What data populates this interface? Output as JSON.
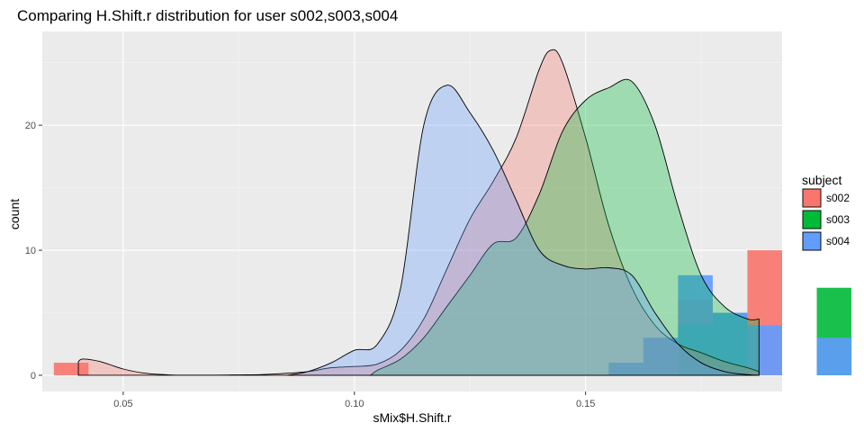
{
  "chart_data": {
    "type": "histogram+density",
    "title": "Comparing H.Shift.r distribution for user s002,s003,s004",
    "xlabel": "sMix$H.Shift.r",
    "ylabel": "count",
    "xlim": [
      0.0325,
      0.1925
    ],
    "ylim": [
      -1.3,
      27.5
    ],
    "x_ticks": [
      0.05,
      0.1,
      0.15
    ],
    "x_tick_labels": [
      "0.05",
      "0.10",
      "0.15"
    ],
    "y_ticks": [
      0,
      10,
      20
    ],
    "y_tick_labels": [
      "0",
      "10",
      "20"
    ],
    "grid": true,
    "legend": {
      "title": "subject",
      "position": "right",
      "items": [
        {
          "label": "s002",
          "color": "#F8766D"
        },
        {
          "label": "s003",
          "color": "#00BA38"
        },
        {
          "label": "s004",
          "color": "#619CFF"
        }
      ]
    },
    "histogram_bins": {
      "width": 0.0075,
      "start": 0.035
    },
    "series": [
      {
        "name": "s002",
        "color": "#F8766D",
        "histogram_counts": [
          1,
          0,
          0,
          0,
          0,
          0,
          0,
          0,
          0,
          0,
          0,
          0,
          0,
          0,
          0,
          0,
          0,
          0,
          6,
          0,
          10,
          0,
          3,
          0,
          0,
          0,
          0,
          0
        ],
        "density": {
          "x": [
            0.0403,
            0.0413,
            0.045,
            0.05,
            0.055,
            0.06,
            0.065,
            0.07,
            0.075,
            0.08,
            0.085,
            0.09,
            0.095,
            0.1,
            0.105,
            0.11,
            0.115,
            0.12,
            0.125,
            0.13,
            0.135,
            0.14,
            0.1425,
            0.145,
            0.15,
            0.155,
            0.16,
            0.165,
            0.17,
            0.175,
            0.18,
            0.185,
            0.1875
          ],
          "y": [
            1.1,
            1.3,
            1.1,
            0.5,
            0.15,
            0.03,
            0.01,
            0.01,
            0.03,
            0.05,
            0.15,
            0.3,
            0.6,
            0.7,
            0.9,
            2.0,
            4.5,
            8.5,
            12.5,
            15.5,
            19.0,
            24.5,
            26.0,
            25.0,
            19.0,
            12.0,
            7.0,
            4.0,
            2.5,
            1.8,
            1.1,
            0.6,
            0.3
          ]
        }
      },
      {
        "name": "s003",
        "color": "#00BA38",
        "histogram_counts": [
          0,
          0,
          0,
          0,
          0,
          0,
          0,
          0,
          0,
          0,
          0,
          0,
          0,
          0,
          0,
          0,
          0,
          0,
          4,
          5,
          0,
          0,
          7,
          0,
          8,
          4,
          1,
          2
        ],
        "density": {
          "x": [
            0.1035,
            0.105,
            0.11,
            0.115,
            0.12,
            0.125,
            0.13,
            0.135,
            0.14,
            0.145,
            0.15,
            0.155,
            0.16,
            0.165,
            0.17,
            0.175,
            0.18,
            0.185,
            0.1875
          ],
          "y": [
            0.0,
            0.4,
            1.3,
            3.0,
            5.5,
            8.0,
            10.5,
            11.0,
            14.5,
            19.5,
            22.0,
            23.0,
            23.5,
            20.0,
            13.5,
            8.0,
            5.5,
            4.5,
            4.5
          ]
        }
      },
      {
        "name": "s004",
        "color": "#619CFF",
        "histogram_counts": [
          0,
          0,
          0,
          0,
          0,
          0,
          0,
          0,
          0,
          0,
          0,
          0,
          0,
          0,
          0,
          0,
          1,
          3,
          8,
          5,
          4,
          0,
          3,
          0,
          3,
          1,
          0,
          0
        ],
        "density": {
          "x": [
            0.0855,
            0.09,
            0.095,
            0.1,
            0.105,
            0.11,
            0.115,
            0.12,
            0.125,
            0.13,
            0.135,
            0.14,
            0.145,
            0.15,
            0.155,
            0.16,
            0.165,
            0.17,
            0.175,
            0.18,
            0.185,
            0.1875
          ],
          "y": [
            0.0,
            0.3,
            1.0,
            2.0,
            2.5,
            7.0,
            20.0,
            23.2,
            21.0,
            18.0,
            14.0,
            10.0,
            8.8,
            8.5,
            8.6,
            8.0,
            5.0,
            2.5,
            1.0,
            0.3,
            0.05,
            0.0
          ]
        }
      }
    ]
  }
}
